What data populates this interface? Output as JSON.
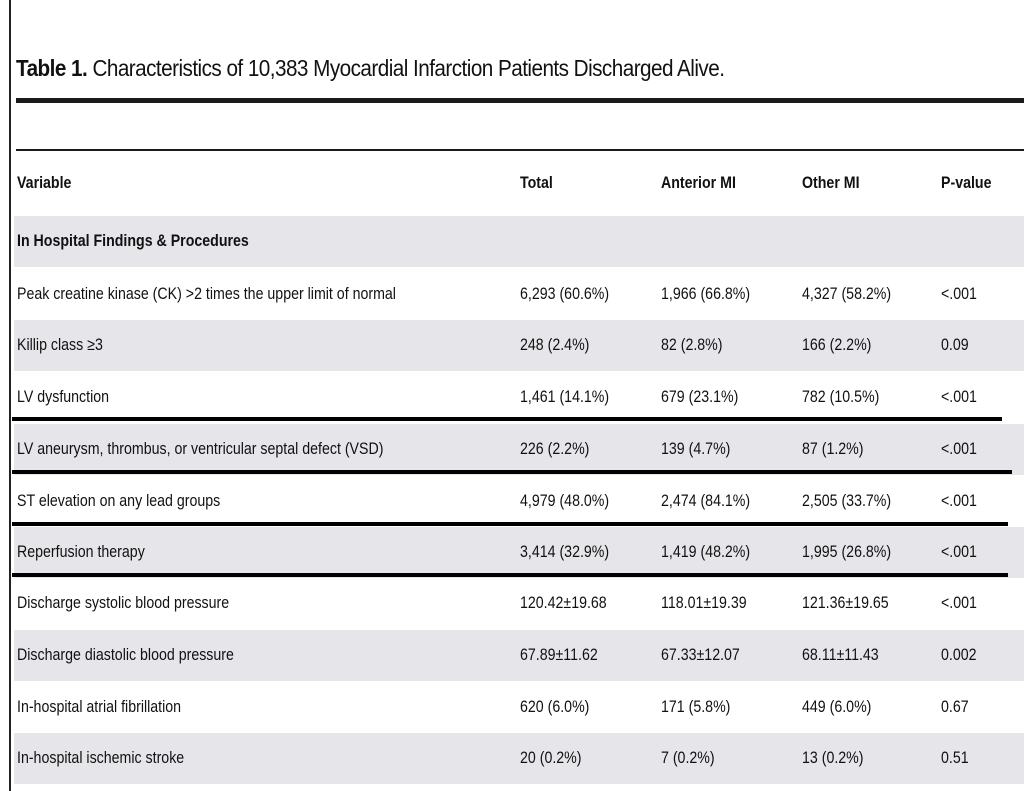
{
  "table": {
    "title_label": "Table 1.",
    "title_text": "Characteristics of 10,383 Myocardial Infarction Patients Discharged Alive.",
    "headers": [
      "Variable",
      "Total",
      "Anterior MI",
      "Other MI",
      "P-value"
    ],
    "section": "In Hospital Findings & Procedures",
    "rows": [
      [
        "Peak creatine kinase (CK) >2 times the upper limit of normal",
        "6,293 (60.6%)",
        "1,966 (66.8%)",
        "4,327 (58.2%)",
        "<.001"
      ],
      [
        "Killip class ≥3",
        "248 (2.4%)",
        "82 (2.8%)",
        "166 (2.2%)",
        "0.09"
      ],
      [
        "LV dysfunction",
        "1,461 (14.1%)",
        "679 (23.1%)",
        "782 (10.5%)",
        "<.001"
      ],
      [
        "LV aneurysm, thrombus, or ventricular septal defect (VSD)",
        "226 (2.2%)",
        "139 (4.7%)",
        "87 (1.2%)",
        "<.001"
      ],
      [
        "ST elevation on any lead groups",
        "4,979 (48.0%)",
        "2,474 (84.1%)",
        "2,505 (33.7%)",
        "<.001"
      ],
      [
        "Reperfusion therapy",
        "3,414 (32.9%)",
        "1,419 (48.2%)",
        "1,995 (26.8%)",
        "<.001"
      ],
      [
        "Discharge systolic blood pressure",
        "120.42±19.68",
        "118.01±19.39",
        "121.36±19.65",
        "<.001"
      ],
      [
        "Discharge diastolic blood pressure",
        "67.89±11.62",
        "67.33±12.07",
        "68.11±11.43",
        "0.002"
      ],
      [
        "In-hospital atrial fibrillation",
        "620 (6.0%)",
        "171 (5.8%)",
        "449 (6.0%)",
        "0.67"
      ],
      [
        "In-hospital ischemic stroke",
        "20 (0.2%)",
        "7 (0.2%)",
        "13 (0.2%)",
        "0.51"
      ]
    ]
  }
}
